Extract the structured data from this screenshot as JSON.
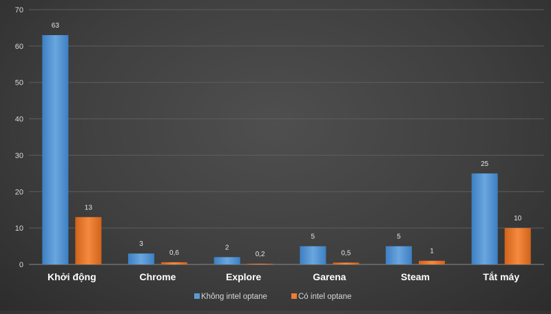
{
  "chart_data": {
    "type": "bar",
    "categories": [
      "Khởi động",
      "Chrome",
      "Explore",
      "Garena",
      "Steam",
      "Tắt máy"
    ],
    "series": [
      {
        "name": "Không intel optane",
        "values": [
          63,
          3,
          2,
          5,
          5,
          25
        ],
        "labels": [
          "63",
          "3",
          "2",
          "5",
          "5",
          "25"
        ],
        "color": "#5b9bd5"
      },
      {
        "name": "Có intel optane",
        "values": [
          13,
          0.6,
          0.2,
          0.5,
          1,
          10
        ],
        "labels": [
          "13",
          "0,6",
          "0,2",
          "0,5",
          "1",
          "10"
        ],
        "color": "#ed7d31"
      }
    ],
    "yticks": [
      "0",
      "10",
      "20",
      "30",
      "40",
      "50",
      "60",
      "70"
    ],
    "ylim": [
      0,
      70
    ],
    "title": "",
    "xlabel": "",
    "ylabel": "",
    "grid": true,
    "legend_position": "bottom"
  }
}
